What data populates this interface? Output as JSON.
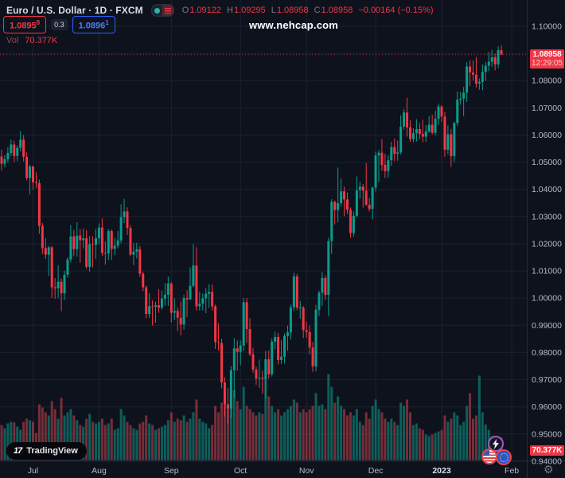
{
  "header": {
    "symbol_title": "Euro / U.S. Dollar · 1D · FXCM",
    "ohlc": [
      {
        "label": "O",
        "value": "1.09122"
      },
      {
        "label": "H",
        "value": "1.09295"
      },
      {
        "label": "L",
        "value": "1.08958"
      },
      {
        "label": "C",
        "value": "1.08958"
      }
    ],
    "change": "−0.00164 (−0.15%)",
    "bid": "1.0895",
    "bid_sup": "8",
    "spread": "0.3",
    "ask": "1.0896",
    "ask_sup": "1",
    "vol_label": "Vol",
    "vol_value": "70.377K"
  },
  "watermark": {
    "text": "www.nehcap.com"
  },
  "price_tag": {
    "price": "1.08958",
    "countdown": "12:29:05"
  },
  "volume_tag": {
    "value": "70.377K"
  },
  "logo": {
    "mark": "17",
    "text": "TradingView"
  },
  "icons": {
    "lightning": "lightning",
    "flag_left": "us-flag",
    "flag_right": "eu-flag",
    "gear": "gear"
  },
  "colors": {
    "bg": "#0e121d",
    "grid": "#1b2130",
    "axis_line": "#252b3a",
    "axis_text": "#b7bac3",
    "year_text": "#dfe2ea",
    "up": "#0b9c8c",
    "down": "#f23645",
    "vol_up": "rgba(12,156,140,0.55)",
    "vol_down": "rgba(231,78,88,0.48)",
    "price_line": "#f23645"
  },
  "chart_data": {
    "type": "candlestick",
    "title": "Euro / U.S. Dollar, 1D, FXCM",
    "current_bar": {
      "o": 1.09122,
      "h": 1.09295,
      "l": 1.08958,
      "c": 1.08958,
      "change": -0.00164,
      "change_pct": -0.15,
      "volume_k": 70.377
    },
    "price_line": 1.08958,
    "y_axis": {
      "min": 0.94,
      "max": 1.1,
      "tick_step": 0.01,
      "labels": [
        {
          "p": 1.1,
          "t": "1.10000"
        },
        {
          "p": 1.08,
          "t": "1.08000"
        },
        {
          "p": 1.07,
          "t": "1.07000"
        },
        {
          "p": 1.06,
          "t": "1.06000"
        },
        {
          "p": 1.05,
          "t": "1.05000"
        },
        {
          "p": 1.04,
          "t": "1.04000"
        },
        {
          "p": 1.03,
          "t": "1.03000"
        },
        {
          "p": 1.02,
          "t": "1.02000"
        },
        {
          "p": 1.01,
          "t": "1.01000"
        },
        {
          "p": 1.0,
          "t": "1.00000"
        },
        {
          "p": 0.99,
          "t": "0.99000"
        },
        {
          "p": 0.98,
          "t": "0.98000"
        },
        {
          "p": 0.97,
          "t": "0.97000"
        },
        {
          "p": 0.96,
          "t": "0.96000"
        },
        {
          "p": 0.95,
          "t": "0.95000"
        },
        {
          "p": 0.94,
          "t": "0.94000"
        }
      ]
    },
    "x_axis": {
      "labels": [
        {
          "i": 10,
          "t": "Jul",
          "year": false
        },
        {
          "i": 31,
          "t": "Aug",
          "year": false
        },
        {
          "i": 54,
          "t": "Sep",
          "year": false
        },
        {
          "i": 76,
          "t": "Oct",
          "year": false
        },
        {
          "i": 97,
          "t": "Nov",
          "year": false
        },
        {
          "i": 119,
          "t": "Dec",
          "year": false
        },
        {
          "i": 140,
          "t": "2023",
          "year": true
        },
        {
          "i": 162.3,
          "t": "Feb",
          "year": false
        }
      ]
    },
    "candles": [
      [
        1.0521,
        1.0546,
        1.0469,
        1.0494,
        110
      ],
      [
        1.0494,
        1.0526,
        1.0481,
        1.0511,
        100
      ],
      [
        1.0511,
        1.0556,
        1.0499,
        1.0534,
        115
      ],
      [
        1.0534,
        1.0583,
        1.0522,
        1.0565,
        120
      ],
      [
        1.0565,
        1.0579,
        1.0501,
        1.0523,
        118
      ],
      [
        1.0523,
        1.0562,
        1.0504,
        1.0553,
        105
      ],
      [
        1.0553,
        1.0615,
        1.0539,
        1.0583,
        95
      ],
      [
        1.0583,
        1.06,
        1.0503,
        1.052,
        120
      ],
      [
        1.052,
        1.0536,
        1.0433,
        1.0442,
        130
      ],
      [
        1.0442,
        1.0491,
        1.0381,
        1.0484,
        125
      ],
      [
        1.0484,
        1.0488,
        1.0399,
        1.0426,
        120
      ],
      [
        1.0426,
        1.0463,
        1.0405,
        1.0423,
        85
      ],
      [
        1.0423,
        1.0436,
        1.0237,
        1.0266,
        175
      ],
      [
        1.0266,
        1.0276,
        1.0162,
        1.0184,
        165
      ],
      [
        1.0184,
        1.0221,
        1.0144,
        1.016,
        150
      ],
      [
        1.016,
        1.0192,
        1.0082,
        1.0187,
        140
      ],
      [
        1.0187,
        1.0192,
        1.0001,
        1.004,
        185
      ],
      [
        1.004,
        1.0074,
        0.9998,
        1.0036,
        160
      ],
      [
        1.0036,
        1.0122,
        1.0,
        1.006,
        130
      ],
      [
        1.006,
        1.0072,
        0.9952,
        1.0018,
        195
      ],
      [
        1.0018,
        1.0101,
        0.9994,
        1.0086,
        140
      ],
      [
        1.0086,
        1.015,
        1.0075,
        1.0142,
        150
      ],
      [
        1.0142,
        1.0269,
        1.0131,
        1.0227,
        160
      ],
      [
        1.0227,
        1.0251,
        1.0154,
        1.018,
        140
      ],
      [
        1.018,
        1.0279,
        1.0152,
        1.023,
        125
      ],
      [
        1.023,
        1.0254,
        1.013,
        1.0213,
        110
      ],
      [
        1.0213,
        1.0257,
        1.0183,
        1.022,
        105
      ],
      [
        1.022,
        1.025,
        1.0108,
        1.0115,
        130
      ],
      [
        1.0115,
        1.0229,
        1.0097,
        1.0199,
        145
      ],
      [
        1.0199,
        1.0228,
        1.0113,
        1.0196,
        120
      ],
      [
        1.0196,
        1.0254,
        1.0144,
        1.022,
        115
      ],
      [
        1.022,
        1.0274,
        1.0199,
        1.026,
        120
      ],
      [
        1.026,
        1.0293,
        1.0155,
        1.0166,
        130
      ],
      [
        1.0166,
        1.0209,
        1.0123,
        1.0165,
        110
      ],
      [
        1.0165,
        1.0254,
        1.014,
        1.0247,
        115
      ],
      [
        1.0247,
        1.0253,
        1.0141,
        1.0181,
        130
      ],
      [
        1.0181,
        1.0222,
        1.0158,
        1.0193,
        95
      ],
      [
        1.0193,
        1.0247,
        1.0183,
        1.0212,
        100
      ],
      [
        1.0212,
        1.0345,
        1.0202,
        1.0298,
        160
      ],
      [
        1.0298,
        1.0365,
        1.0276,
        1.0319,
        140
      ],
      [
        1.0319,
        1.0334,
        1.0232,
        1.0258,
        120
      ],
      [
        1.0258,
        1.0268,
        1.0154,
        1.016,
        110
      ],
      [
        1.016,
        1.0203,
        1.0121,
        1.0171,
        100
      ],
      [
        1.0171,
        1.0203,
        1.0146,
        1.018,
        95
      ],
      [
        1.018,
        1.0192,
        1.0079,
        1.009,
        115
      ],
      [
        1.009,
        1.0098,
        1.0026,
        1.004,
        120
      ],
      [
        1.004,
        1.0046,
        0.9926,
        0.9942,
        140
      ],
      [
        0.9942,
        1.0018,
        0.9928,
        0.997,
        115
      ],
      [
        0.997,
        0.9992,
        0.9899,
        0.9968,
        110
      ],
      [
        0.9968,
        0.9987,
        0.991,
        0.9974,
        95
      ],
      [
        0.9974,
        1.0033,
        0.9946,
        0.9965,
        100
      ],
      [
        0.9965,
        1.0028,
        0.9958,
        0.9998,
        105
      ],
      [
        0.9998,
        1.0055,
        0.9972,
        1.0012,
        110
      ],
      [
        1.0012,
        1.0079,
        0.9972,
        1.0054,
        125
      ],
      [
        1.0054,
        1.0059,
        0.991,
        0.9946,
        150
      ],
      [
        0.9946,
        1.0,
        0.992,
        0.9953,
        120
      ],
      [
        0.9953,
        0.9966,
        0.9878,
        0.9928,
        130
      ],
      [
        0.9928,
        0.9987,
        0.9863,
        0.9903,
        125
      ],
      [
        0.9903,
        1.0013,
        0.9884,
        1.0,
        140
      ],
      [
        1.0,
        1.0029,
        0.993,
        0.9995,
        120
      ],
      [
        0.9995,
        1.0113,
        0.9993,
        1.0045,
        130
      ],
      [
        1.0045,
        1.0198,
        1.004,
        1.012,
        150
      ],
      [
        1.012,
        1.0187,
        0.9955,
        0.997,
        190
      ],
      [
        0.997,
        1.0023,
        0.9954,
        0.9979,
        130
      ],
      [
        0.9979,
        1.0017,
        0.9955,
        0.9999,
        120
      ],
      [
        0.9999,
        1.0036,
        0.9945,
        1.0016,
        115
      ],
      [
        1.0016,
        1.0051,
        0.9964,
        1.0023,
        100
      ],
      [
        1.0023,
        1.005,
        0.9954,
        0.997,
        110
      ],
      [
        0.997,
        0.9976,
        0.9813,
        0.9838,
        170
      ],
      [
        0.9838,
        0.9907,
        0.9807,
        0.9835,
        150
      ],
      [
        0.9835,
        0.9851,
        0.9668,
        0.969,
        180
      ],
      [
        0.969,
        0.9709,
        0.9565,
        0.9609,
        190
      ],
      [
        0.9609,
        0.967,
        0.9536,
        0.9594,
        175
      ],
      [
        0.9594,
        0.975,
        0.9559,
        0.9735,
        200
      ],
      [
        0.9735,
        0.9853,
        0.9634,
        0.9815,
        220
      ],
      [
        0.9815,
        0.9844,
        0.9733,
        0.9802,
        185
      ],
      [
        0.9802,
        0.9844,
        0.9753,
        0.9826,
        160
      ],
      [
        0.9826,
        1.0,
        0.9804,
        0.9985,
        230
      ],
      [
        0.9985,
        1.0,
        0.9835,
        0.9886,
        170
      ],
      [
        0.9886,
        0.9926,
        0.9787,
        0.9794,
        160
      ],
      [
        0.9794,
        0.9817,
        0.9726,
        0.9737,
        150
      ],
      [
        0.9737,
        0.9748,
        0.9681,
        0.9704,
        140
      ],
      [
        0.9704,
        0.9774,
        0.967,
        0.9707,
        150
      ],
      [
        0.9707,
        0.9733,
        0.9649,
        0.9703,
        145
      ],
      [
        0.9703,
        0.9807,
        0.9632,
        0.9775,
        260
      ],
      [
        0.9775,
        0.9807,
        0.9704,
        0.972,
        200
      ],
      [
        0.972,
        0.9852,
        0.9711,
        0.984,
        170
      ],
      [
        0.984,
        0.9876,
        0.9812,
        0.9857,
        150
      ],
      [
        0.9857,
        0.9872,
        0.9756,
        0.9772,
        160
      ],
      [
        0.9772,
        0.9845,
        0.9757,
        0.9785,
        140
      ],
      [
        0.9785,
        0.987,
        0.976,
        0.9861,
        150
      ],
      [
        0.9861,
        0.9899,
        0.9806,
        0.9874,
        160
      ],
      [
        0.9874,
        0.9976,
        0.9848,
        0.9966,
        170
      ],
      [
        0.9966,
        1.0094,
        0.9952,
        1.008,
        190
      ],
      [
        1.008,
        1.0089,
        0.9955,
        0.9965,
        180
      ],
      [
        0.9965,
        0.999,
        0.9924,
        0.9965,
        150
      ],
      [
        0.9965,
        0.9971,
        0.9853,
        0.9882,
        160
      ],
      [
        0.9882,
        0.9914,
        0.9854,
        0.9875,
        150
      ],
      [
        0.9875,
        0.9899,
        0.9793,
        0.9818,
        160
      ],
      [
        0.9818,
        0.9839,
        0.9729,
        0.9749,
        170
      ],
      [
        0.9749,
        0.9975,
        0.973,
        0.9957,
        210
      ],
      [
        0.9957,
        1.0027,
        0.9935,
        1.002,
        170
      ],
      [
        1.002,
        1.0096,
        0.9972,
        1.0074,
        175
      ],
      [
        1.0074,
        1.0084,
        0.9994,
        1.0012,
        160
      ],
      [
        1.0012,
        1.0222,
        0.9935,
        1.021,
        270
      ],
      [
        1.021,
        1.0364,
        1.0163,
        1.0354,
        230
      ],
      [
        1.0354,
        1.0359,
        1.0271,
        1.0324,
        180
      ],
      [
        1.0324,
        1.048,
        1.0279,
        1.0349,
        200
      ],
      [
        1.0349,
        1.0439,
        1.0339,
        1.0393,
        170
      ],
      [
        1.0393,
        1.041,
        1.0301,
        1.0363,
        160
      ],
      [
        1.0363,
        1.0389,
        1.031,
        1.0325,
        140
      ],
      [
        1.0325,
        1.0334,
        1.0222,
        1.0239,
        150
      ],
      [
        1.0239,
        1.0319,
        1.0226,
        1.0303,
        140
      ],
      [
        1.0303,
        1.0448,
        1.0296,
        1.0397,
        160
      ],
      [
        1.0397,
        1.0428,
        1.0366,
        1.041,
        120
      ],
      [
        1.041,
        1.042,
        1.0333,
        1.0395,
        110
      ],
      [
        1.0395,
        1.0497,
        1.034,
        1.0343,
        150
      ],
      [
        1.0343,
        1.0369,
        1.0319,
        1.0328,
        130
      ],
      [
        1.0328,
        1.0411,
        1.029,
        1.0406,
        170
      ],
      [
        1.0406,
        1.0539,
        1.0392,
        1.0525,
        190
      ],
      [
        1.0525,
        1.0545,
        1.0428,
        1.0535,
        160
      ],
      [
        1.0535,
        1.0585,
        1.0468,
        1.049,
        150
      ],
      [
        1.049,
        1.0531,
        1.0442,
        1.0467,
        130
      ],
      [
        1.0467,
        1.0525,
        1.0443,
        1.0507,
        120
      ],
      [
        1.0507,
        1.0575,
        1.0487,
        1.0556,
        130
      ],
      [
        1.0556,
        1.0587,
        1.0504,
        1.0531,
        120
      ],
      [
        1.0531,
        1.058,
        1.0506,
        1.0536,
        110
      ],
      [
        1.0536,
        1.0673,
        1.0528,
        1.0631,
        180
      ],
      [
        1.0631,
        1.0695,
        1.062,
        1.0683,
        170
      ],
      [
        1.0683,
        1.0737,
        1.0594,
        1.0628,
        190
      ],
      [
        1.0628,
        1.0655,
        1.0575,
        1.0585,
        150
      ],
      [
        1.0585,
        1.0625,
        1.0574,
        1.0607,
        110
      ],
      [
        1.0607,
        1.0658,
        1.0576,
        1.0622,
        115
      ],
      [
        1.0622,
        1.0644,
        1.0584,
        1.0604,
        100
      ],
      [
        1.0604,
        1.0656,
        1.0574,
        1.0594,
        95
      ],
      [
        1.0594,
        1.0636,
        1.0575,
        1.0613,
        80
      ],
      [
        1.0613,
        1.067,
        1.0608,
        1.0638,
        75
      ],
      [
        1.0638,
        1.0675,
        1.0602,
        1.0608,
        80
      ],
      [
        1.0608,
        1.069,
        1.0599,
        1.066,
        85
      ],
      [
        1.066,
        1.0715,
        1.0637,
        1.0705,
        90
      ],
      [
        1.0705,
        1.071,
        1.0648,
        1.0668,
        95
      ],
      [
        1.0668,
        1.0684,
        1.052,
        1.0546,
        140
      ],
      [
        1.0546,
        1.0635,
        1.0529,
        1.0603,
        120
      ],
      [
        1.0603,
        1.0622,
        1.0483,
        1.0522,
        130
      ],
      [
        1.0522,
        1.0649,
        1.05,
        1.0644,
        150
      ],
      [
        1.0644,
        1.076,
        1.0634,
        1.073,
        140
      ],
      [
        1.073,
        1.0759,
        1.0711,
        1.0734,
        110
      ],
      [
        1.0734,
        1.0777,
        1.0669,
        1.0756,
        120
      ],
      [
        1.0756,
        1.0868,
        1.0722,
        1.0852,
        170
      ],
      [
        1.0852,
        1.0874,
        1.078,
        1.083,
        210
      ],
      [
        1.083,
        1.0874,
        1.0802,
        1.0822,
        130
      ],
      [
        1.0822,
        1.0887,
        1.0775,
        1.0789,
        140
      ],
      [
        1.0789,
        1.0808,
        1.0766,
        1.0795,
        265
      ],
      [
        1.0795,
        1.086,
        1.0765,
        1.0832,
        150
      ],
      [
        1.0832,
        1.0868,
        1.08,
        1.0855,
        112
      ],
      [
        1.0855,
        1.0905,
        1.0835,
        1.087,
        95
      ],
      [
        1.087,
        1.0913,
        1.0851,
        1.0886,
        75
      ],
      [
        1.0886,
        1.09,
        1.0838,
        1.086,
        62
      ],
      [
        1.086,
        1.0926,
        1.0846,
        1.0912,
        55
      ],
      [
        1.09122,
        1.09295,
        1.08958,
        1.08958,
        70.377
      ]
    ]
  }
}
